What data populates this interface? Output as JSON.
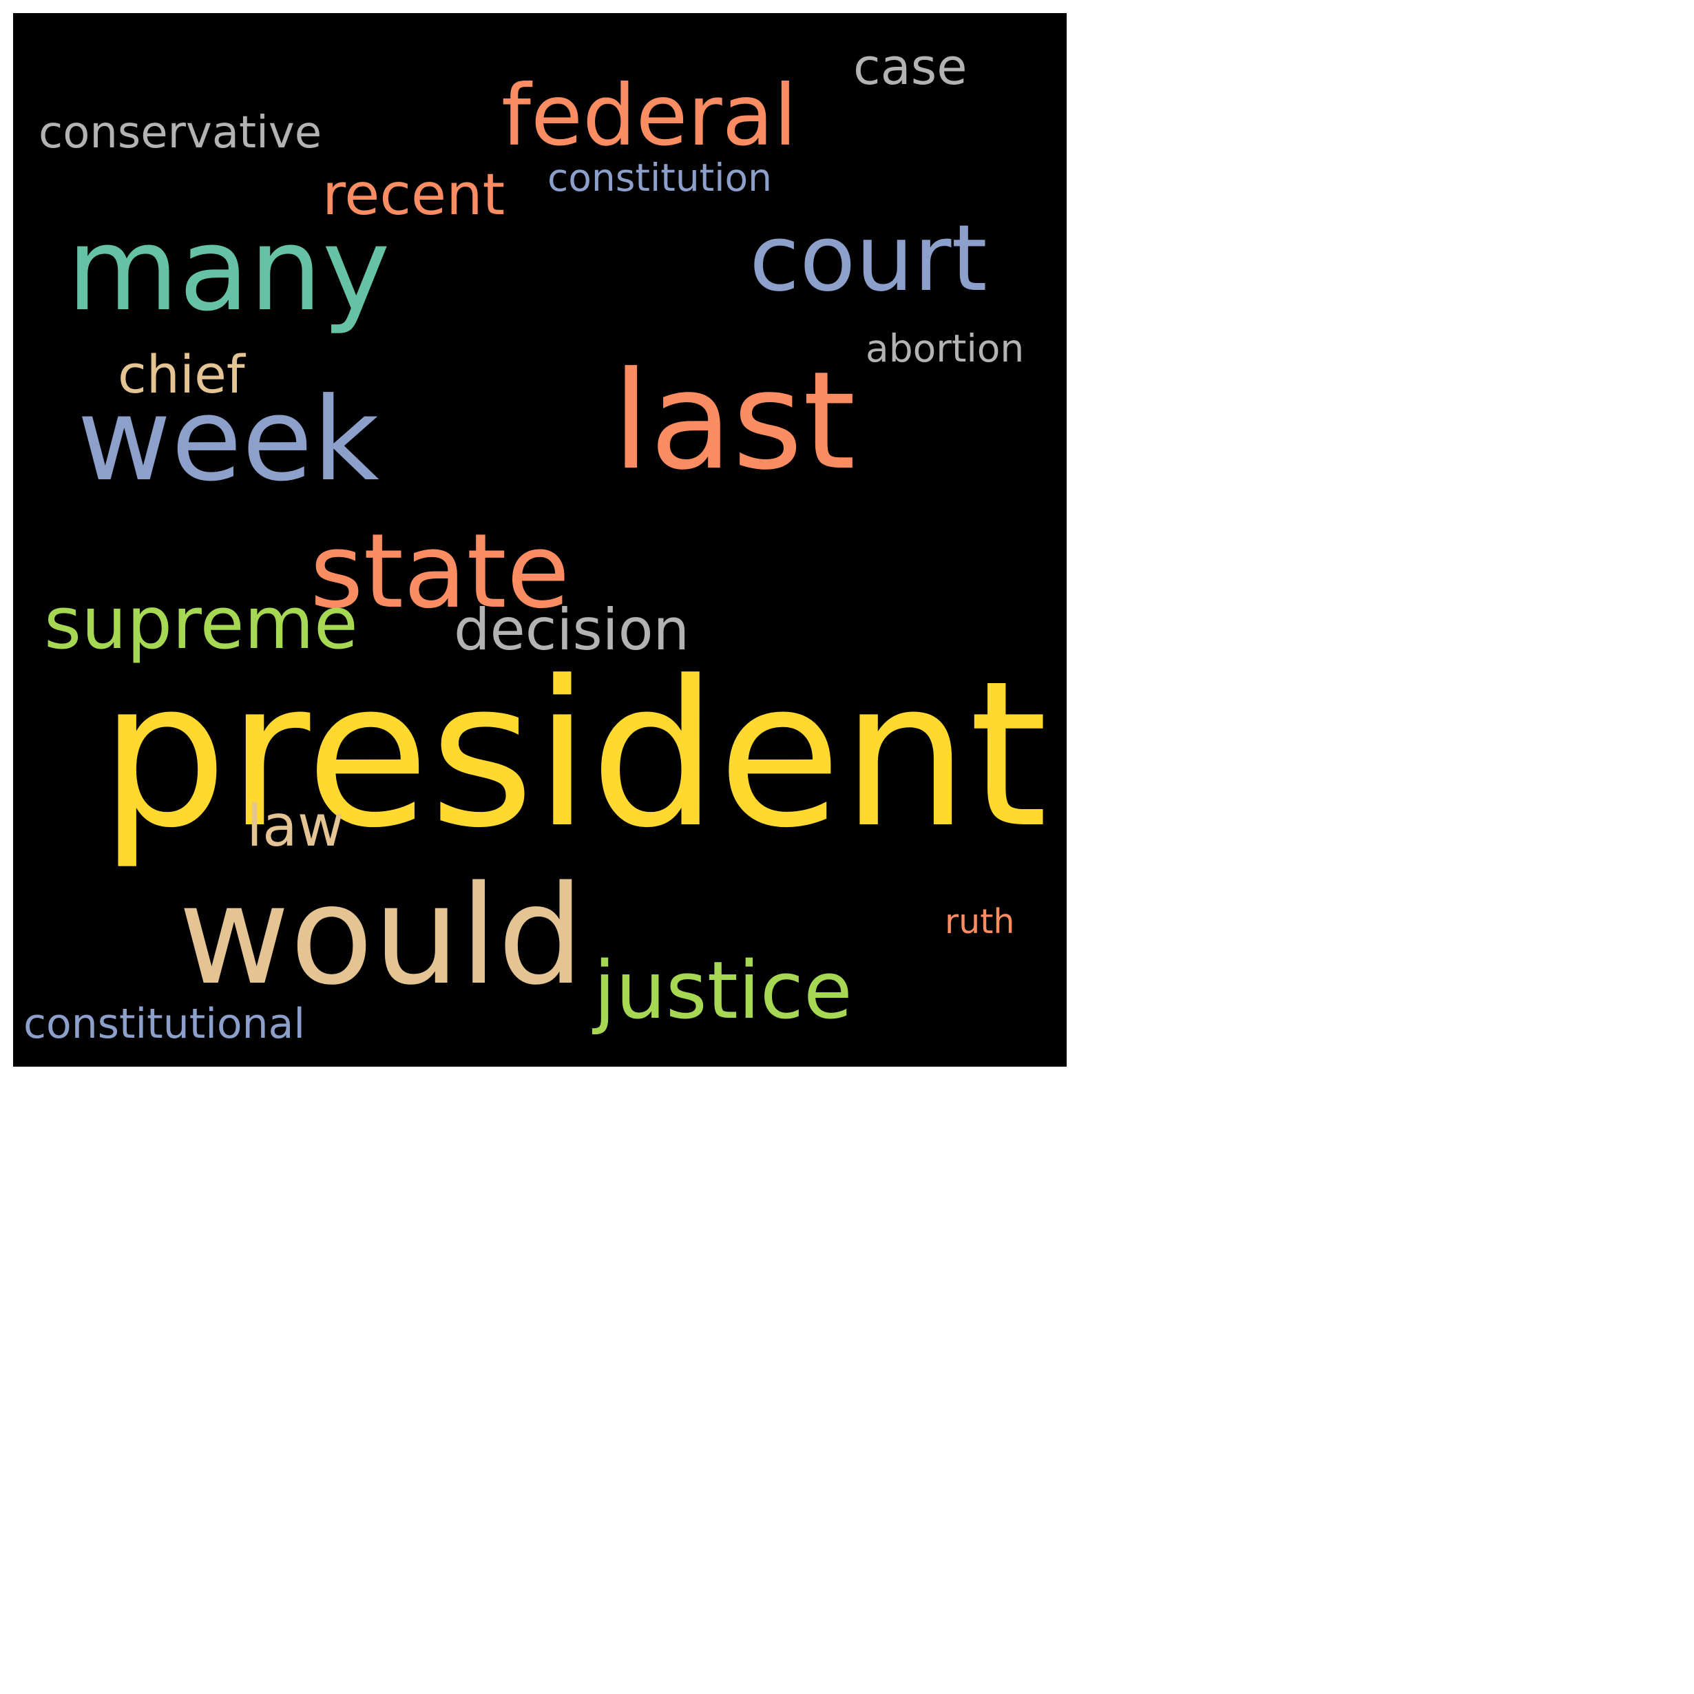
{
  "words": {
    "president": {
      "text": "president",
      "color": "#ffd92f"
    },
    "would": {
      "text": "would",
      "color": "#e5c494"
    },
    "last": {
      "text": "last",
      "color": "#fc8d62"
    },
    "many": {
      "text": "many",
      "color": "#66c2a5"
    },
    "week": {
      "text": "week",
      "color": "#8da0cb"
    },
    "state": {
      "text": "state",
      "color": "#fc8d62"
    },
    "court": {
      "text": "court",
      "color": "#8da0cb"
    },
    "federal": {
      "text": "federal",
      "color": "#fc8d62"
    },
    "justice": {
      "text": "justice",
      "color": "#a6d854"
    },
    "supreme": {
      "text": "supreme",
      "color": "#a6d854"
    },
    "decision": {
      "text": "decision",
      "color": "#b3b3b3"
    },
    "recent": {
      "text": "recent",
      "color": "#fc8d62"
    },
    "law": {
      "text": "law",
      "color": "#e5c494"
    },
    "case": {
      "text": "case",
      "color": "#b3b3b3"
    },
    "chief": {
      "text": "chief",
      "color": "#e5c494"
    },
    "conservative": {
      "text": "conservative",
      "color": "#b3b3b3"
    },
    "constitution": {
      "text": "constitution",
      "color": "#8da0cb"
    },
    "abortion": {
      "text": "abortion",
      "color": "#b3b3b3"
    },
    "ruth": {
      "text": "ruth",
      "color": "#fc8d62"
    },
    "constitutional": {
      "text": "constitutional",
      "color": "#8da0cb"
    }
  },
  "background_color": "#000000"
}
